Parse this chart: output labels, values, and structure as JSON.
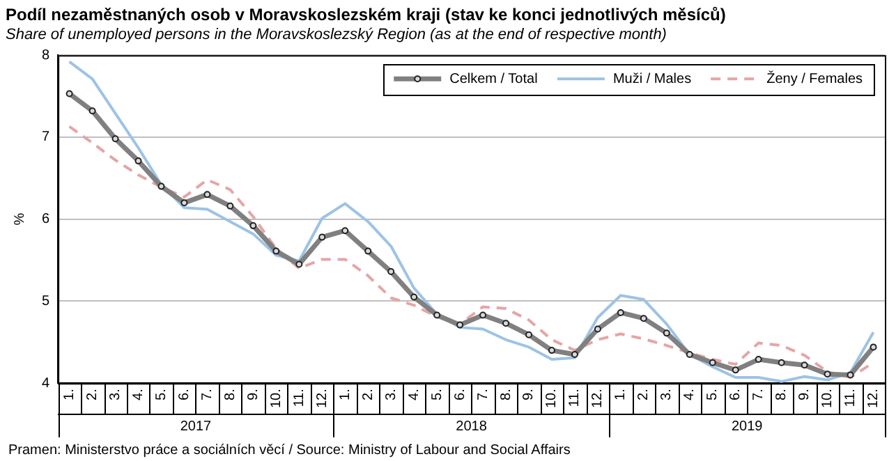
{
  "chart_data": {
    "type": "line",
    "title": "Podíl nezaměstnaných osob v Moravskoslezském kraji (stav ke konci jednotlivých měsíců)",
    "subtitle": "Share of unemployed persons in the Moravskoslezský Region (as at the end of respective month)",
    "ylabel": "%",
    "categories": [
      "1.",
      "2.",
      "3.",
      "4.",
      "5.",
      "6.",
      "7.",
      "8.",
      "9.",
      "10.",
      "11.",
      "12.",
      "1.",
      "2.",
      "3.",
      "4.",
      "5.",
      "6.",
      "7.",
      "8.",
      "9.",
      "10.",
      "11.",
      "12.",
      "1.",
      "2.",
      "3.",
      "4.",
      "5.",
      "6.",
      "7.",
      "8.",
      "9.",
      "10.",
      "11.",
      "12."
    ],
    "series": [
      {
        "name": "Celkem / Total",
        "color": "#808080",
        "marker": "circle",
        "line_style": "solid",
        "values": [
          7.53,
          7.32,
          6.98,
          6.71,
          6.4,
          6.2,
          6.3,
          6.16,
          5.92,
          5.61,
          5.45,
          5.78,
          5.86,
          5.61,
          5.36,
          5.05,
          4.83,
          4.71,
          4.83,
          4.73,
          4.59,
          4.4,
          4.35,
          4.66,
          4.86,
          4.79,
          4.61,
          4.35,
          4.25,
          4.16,
          4.29,
          4.25,
          4.22,
          4.11,
          4.1,
          4.44
        ]
      },
      {
        "name": "Muži / Males",
        "color": "#9dc3e6",
        "marker": "none",
        "line_style": "solid",
        "values": [
          7.92,
          7.71,
          7.29,
          6.87,
          6.42,
          6.14,
          6.12,
          5.97,
          5.82,
          5.56,
          5.49,
          6.01,
          6.19,
          5.97,
          5.67,
          5.16,
          4.84,
          4.68,
          4.66,
          4.53,
          4.44,
          4.29,
          4.31,
          4.8,
          5.07,
          5.02,
          4.72,
          4.35,
          4.2,
          4.07,
          4.07,
          4.02,
          4.08,
          4.04,
          4.13,
          4.62
        ]
      },
      {
        "name": "Ženy / Females",
        "color": "#e6a5a5",
        "marker": "none",
        "line_style": "dashed",
        "values": [
          7.13,
          6.93,
          6.72,
          6.54,
          6.39,
          6.27,
          6.48,
          6.36,
          6.03,
          5.64,
          5.4,
          5.51,
          5.51,
          5.31,
          5.04,
          4.95,
          4.81,
          4.72,
          4.93,
          4.91,
          4.77,
          4.53,
          4.4,
          4.53,
          4.6,
          4.54,
          4.46,
          4.37,
          4.29,
          4.23,
          4.49,
          4.46,
          4.34,
          4.14,
          4.07,
          4.25
        ]
      }
    ],
    "ylim": [
      4,
      8
    ],
    "yticks": [
      4,
      5,
      6,
      7,
      8
    ],
    "grid": "y",
    "legend": "top right",
    "annotations": [
      "2017",
      "2018",
      "2019",
      "Pramen: Ministerstvo práce a sociálních věcí / Source: Ministry of Labour and Social Affairs"
    ]
  }
}
